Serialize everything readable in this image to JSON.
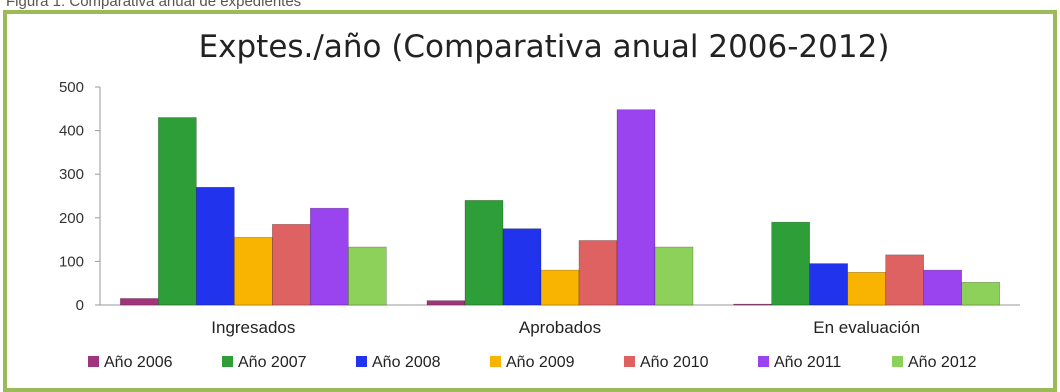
{
  "page": {
    "caption": "Figura 1: Comparativa anual de expedientes",
    "frame_color": "#9bbb59"
  },
  "chart_data": {
    "type": "bar",
    "title": "Exptes./año (Comparativa anual 2006-2012)",
    "xlabel": "",
    "ylabel": "",
    "ylim": [
      0,
      500
    ],
    "yticks": [
      0,
      100,
      200,
      300,
      400,
      500
    ],
    "grid": false,
    "legend_position": "bottom",
    "categories": [
      "Ingresados",
      "Aprobados",
      "En evaluación"
    ],
    "series": [
      {
        "name": "Año 2006",
        "color": "#a0357e",
        "values": [
          15,
          10,
          2
        ]
      },
      {
        "name": "Año 2007",
        "color": "#2e9e38",
        "values": [
          430,
          240,
          190
        ]
      },
      {
        "name": "Año 2008",
        "color": "#2233ee",
        "values": [
          270,
          175,
          95
        ]
      },
      {
        "name": "Año 2009",
        "color": "#f8b400",
        "values": [
          155,
          80,
          75
        ]
      },
      {
        "name": "Año 2010",
        "color": "#de6262",
        "values": [
          185,
          148,
          115
        ]
      },
      {
        "name": "Año 2011",
        "color": "#9a44f0",
        "values": [
          222,
          448,
          80
        ]
      },
      {
        "name": "Año 2012",
        "color": "#8ed15a",
        "values": [
          133,
          133,
          52
        ]
      }
    ]
  }
}
